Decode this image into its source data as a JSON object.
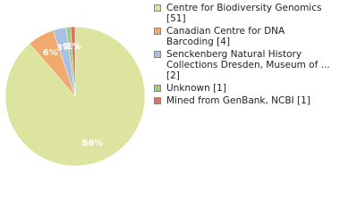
{
  "chart_data": {
    "type": "pie",
    "series": [
      {
        "name": "Centre for Biodiversity Genomics [51]",
        "color": "#dde4a0",
        "value": 86,
        "value_label": "86%"
      },
      {
        "name": "Canadian Centre for DNA Barcoding [4]",
        "color": "#f0aa6e",
        "value": 6,
        "value_label": "6%"
      },
      {
        "name": "Senckenberg Natural History Collections Dresden, Museum of ... [2]",
        "color": "#a8c0e2",
        "value": 3,
        "value_label": "3%"
      },
      {
        "name": "Unknown [1]",
        "color": "#9fca7c",
        "value": 1,
        "value_label": "1%"
      },
      {
        "name": "Mined from GenBank, NCBI [1]",
        "color": "#e0705f",
        "value": 1,
        "value_label": "1%"
      }
    ]
  }
}
